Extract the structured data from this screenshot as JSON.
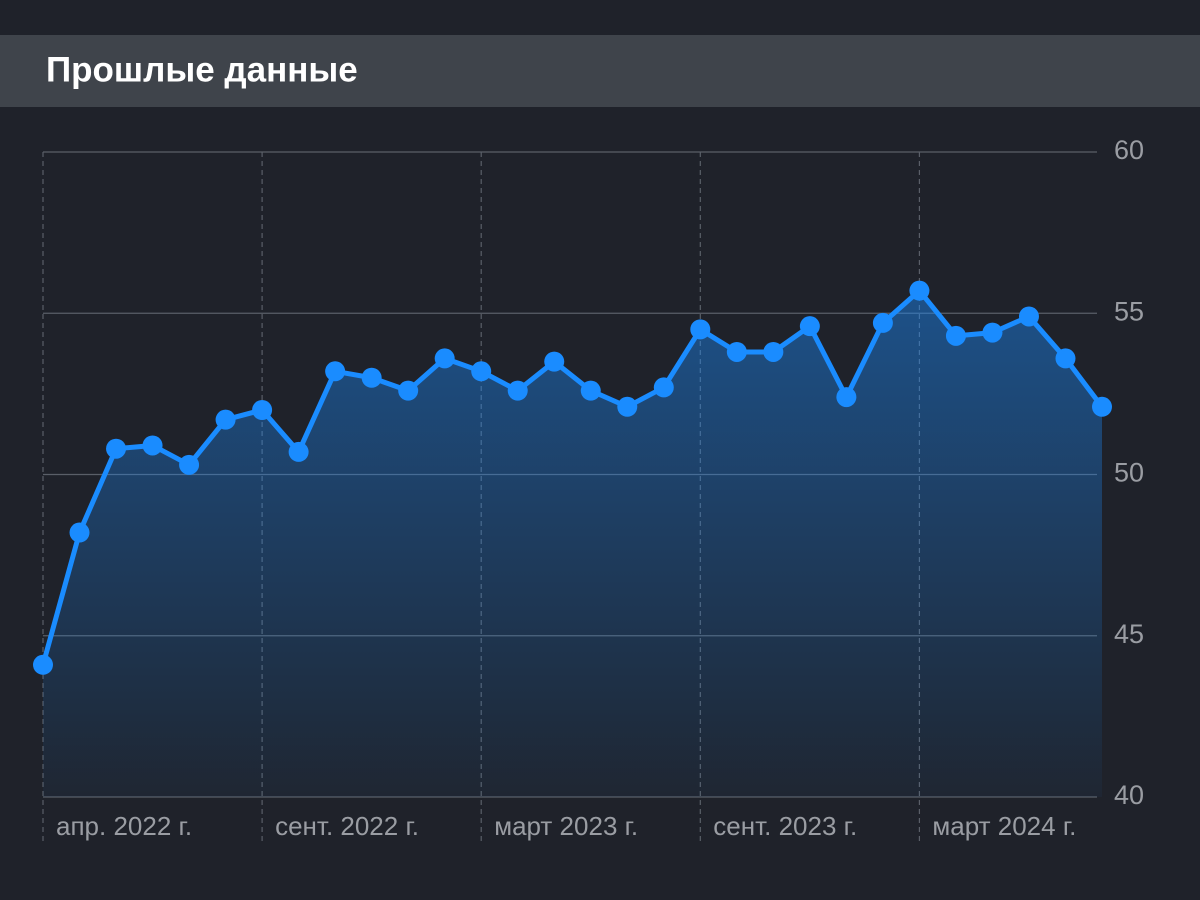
{
  "chart_data": {
    "type": "line",
    "title": "Прошлые данные",
    "categories": [
      "апр. 2022 г.",
      null,
      null,
      null,
      null,
      null,
      "сент. 2022 г.",
      null,
      null,
      null,
      null,
      null,
      "март 2023 г.",
      null,
      null,
      null,
      null,
      null,
      "сент. 2023 г.",
      null,
      null,
      null,
      null,
      null,
      "март 2024 г.",
      null,
      null,
      null,
      null,
      null
    ],
    "values": [
      44.1,
      48.2,
      50.8,
      50.9,
      50.3,
      51.7,
      52.0,
      50.7,
      53.2,
      53.0,
      52.6,
      53.6,
      53.2,
      52.6,
      53.5,
      52.6,
      52.1,
      52.7,
      54.5,
      53.8,
      53.8,
      54.6,
      52.4,
      54.7,
      55.7,
      54.3,
      54.4,
      54.9,
      53.6,
      52.1
    ],
    "color": "#1a8cff",
    "ylim": [
      40,
      60
    ],
    "yticks": [
      40,
      45,
      50,
      55,
      60
    ],
    "grid": true
  }
}
